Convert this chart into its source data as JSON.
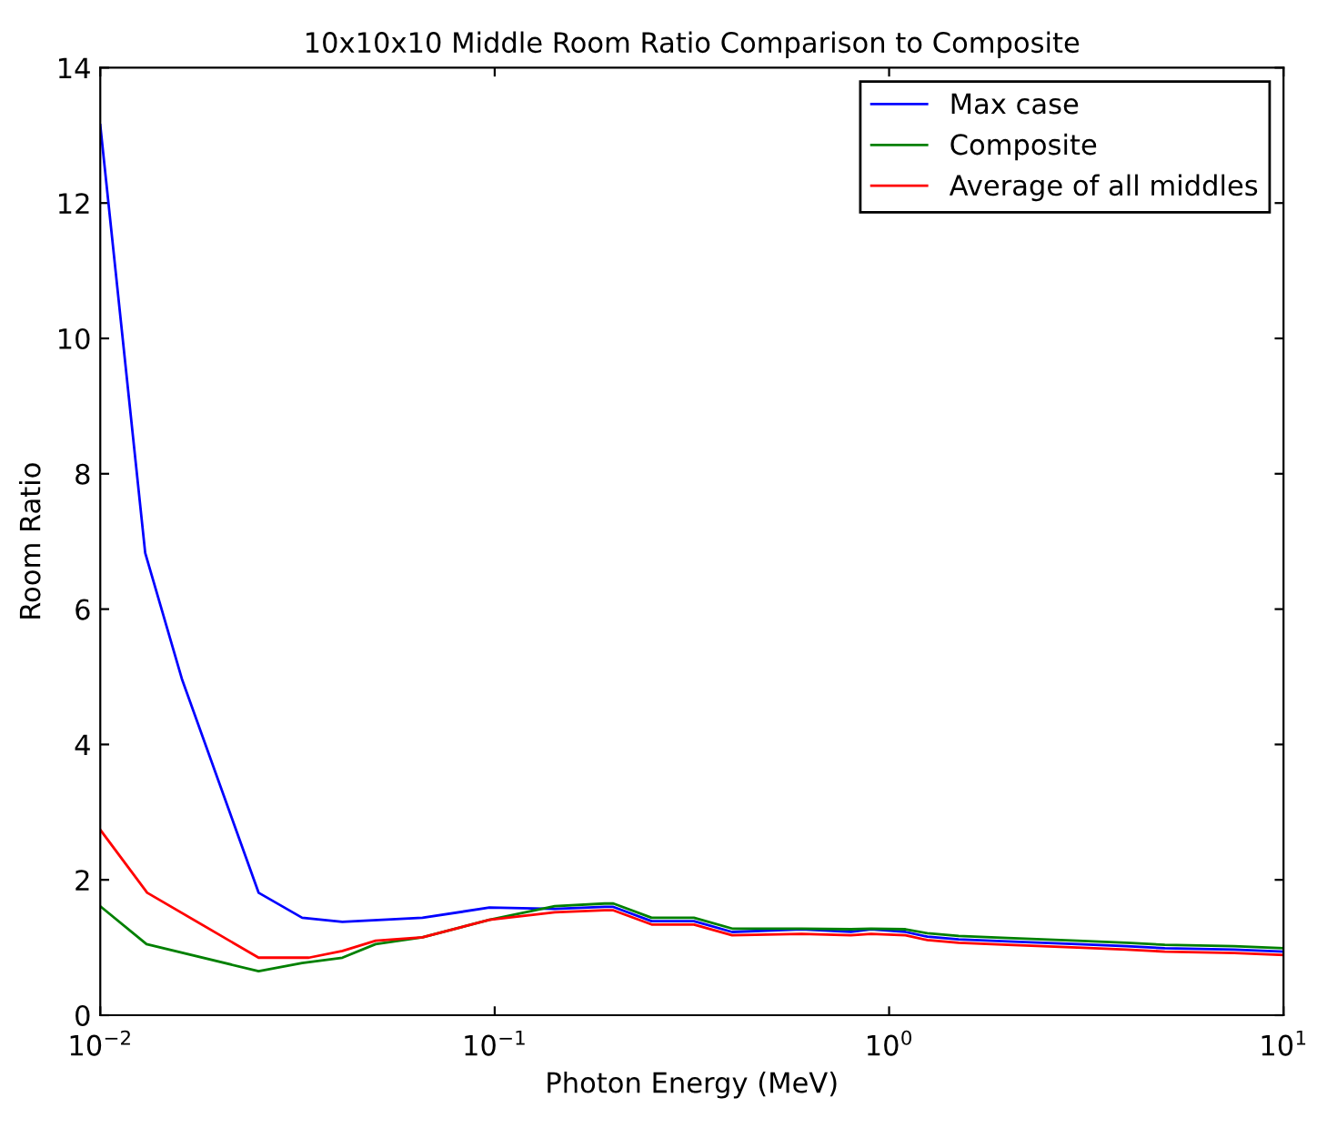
{
  "chart_data": {
    "type": "line",
    "title": "10x10x10 Middle Room Ratio Comparison to Composite",
    "xlabel": "Photon Energy (MeV)",
    "ylabel": "Room Ratio",
    "log": "x",
    "xlim": [
      0.01,
      10
    ],
    "xticks": [
      {
        "value": 0.01,
        "label": "10$^{−2}$"
      },
      {
        "value": 0.1,
        "label": "10$^{−1}$"
      },
      {
        "value": 1,
        "label": "10$^{0}$"
      },
      {
        "value": 10,
        "label": "10$^{1}$"
      }
    ],
    "ylim": [
      0,
      14
    ],
    "yticks": [
      0,
      2,
      4,
      6,
      8,
      10,
      12,
      14
    ],
    "grid": false,
    "legend": "top right",
    "marker": "none",
    "line_style": "solid",
    "series": [
      {
        "name": "Max case",
        "color": "#0000ff",
        "x": [
          0.01,
          0.013,
          0.0161,
          0.0252,
          0.0325,
          0.0411,
          0.0656,
          0.097,
          0.142,
          0.19,
          0.2,
          0.25,
          0.32,
          0.4,
          0.6,
          0.8,
          0.9,
          1.1,
          1.25,
          1.5,
          2.0,
          3.0,
          4.0,
          5.0,
          7.5,
          10
        ],
        "values": [
          13.15,
          6.83,
          4.97,
          1.81,
          1.44,
          1.38,
          1.44,
          1.59,
          1.57,
          1.6,
          1.6,
          1.39,
          1.39,
          1.23,
          1.27,
          1.23,
          1.27,
          1.23,
          1.16,
          1.12,
          1.09,
          1.05,
          1.02,
          0.99,
          0.97,
          0.94
        ]
      },
      {
        "name": "Composite",
        "color": "#008000",
        "x": [
          0.01,
          0.0131,
          0.0252,
          0.0325,
          0.0411,
          0.0499,
          0.0656,
          0.097,
          0.142,
          0.19,
          0.2,
          0.25,
          0.32,
          0.4,
          0.6,
          0.8,
          0.9,
          1.1,
          1.25,
          1.5,
          2.0,
          3.0,
          4.0,
          5.0,
          7.5,
          10
        ],
        "values": [
          1.61,
          1.05,
          0.65,
          0.77,
          0.85,
          1.05,
          1.15,
          1.41,
          1.61,
          1.65,
          1.65,
          1.44,
          1.44,
          1.28,
          1.28,
          1.27,
          1.28,
          1.27,
          1.21,
          1.17,
          1.14,
          1.1,
          1.07,
          1.04,
          1.02,
          0.99
        ]
      },
      {
        "name": "Average of all middles",
        "color": "#ff0000",
        "x": [
          0.01,
          0.01315,
          0.0252,
          0.0338,
          0.0411,
          0.0499,
          0.0656,
          0.097,
          0.142,
          0.19,
          0.2,
          0.25,
          0.32,
          0.4,
          0.6,
          0.8,
          0.9,
          1.1,
          1.25,
          1.5,
          2.0,
          3.0,
          4.0,
          5.0,
          7.5,
          10
        ],
        "values": [
          2.74,
          1.81,
          0.85,
          0.85,
          0.95,
          1.1,
          1.15,
          1.41,
          1.52,
          1.55,
          1.55,
          1.34,
          1.34,
          1.18,
          1.2,
          1.18,
          1.2,
          1.18,
          1.11,
          1.07,
          1.04,
          1.0,
          0.97,
          0.94,
          0.92,
          0.89
        ]
      }
    ]
  }
}
